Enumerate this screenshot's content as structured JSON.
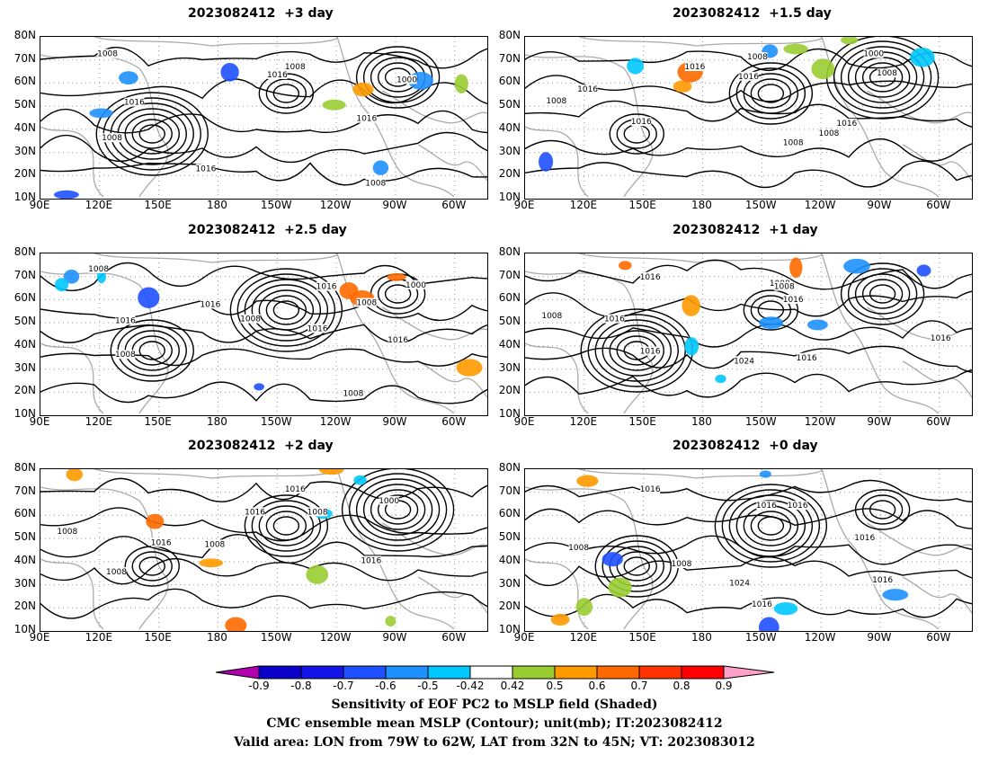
{
  "panels": [
    {
      "title": "2023082412  +3 day"
    },
    {
      "title": "2023082412  +1.5 day"
    },
    {
      "title": "2023082412  +2.5 day"
    },
    {
      "title": "2023082412  +1 day"
    },
    {
      "title": "2023082412  +2 day"
    },
    {
      "title": "2023082412  +0 day"
    }
  ],
  "axes": {
    "lat_labels": [
      "80N",
      "70N",
      "60N",
      "50N",
      "40N",
      "30N",
      "20N",
      "10N"
    ],
    "lon_labels": [
      "90E",
      "120E",
      "150E",
      "180",
      "150W",
      "120W",
      "90W",
      "60W"
    ]
  },
  "contour_labels": {
    "p0": [
      "1008",
      "1008",
      "1016",
      "1000",
      "1016",
      "1016",
      "1008",
      "1016",
      "1008"
    ],
    "p1": [
      "1008",
      "1016",
      "1008",
      "1016",
      "1000",
      "1008",
      "1016",
      "1016",
      "1008",
      "1024",
      "1016",
      "1008"
    ],
    "p2": [
      "1008",
      "1016",
      "1016",
      "1008",
      "1008",
      "1000",
      "1016",
      "1008",
      "1016",
      "1016",
      "1008"
    ],
    "p3": [
      "1016",
      "1008",
      "1016",
      "1008",
      "1008",
      "1016",
      "1016",
      "1024",
      "1016",
      "1016"
    ],
    "p4": [
      "1016",
      "1016",
      "1000",
      "1008",
      "1008",
      "1016",
      "1008",
      "1016",
      "1008"
    ],
    "p5": [
      "1016",
      "1016",
      "1008",
      "1016",
      "1008",
      "1024",
      "1016",
      "1016",
      "1016"
    ]
  },
  "colorbar": {
    "ticks": [
      "-0.9",
      "-0.8",
      "-0.7",
      "-0.6",
      "-0.5",
      "-0.42",
      "0.42",
      "0.5",
      "0.6",
      "0.7",
      "0.8",
      "0.9"
    ],
    "colors": [
      "#b000b0",
      "#0a00c8",
      "#1414e6",
      "#1e50ff",
      "#1e90ff",
      "#00c8ff",
      "#ffffff",
      "#9acd32",
      "#ff9900",
      "#ff6a00",
      "#ff3300",
      "#ff0000",
      "#ffa0c8"
    ]
  },
  "caption": {
    "line1": "Sensitivity of EOF PC2 to MSLP field (Shaded)",
    "line2": "CMC ensemble mean MSLP (Contour); unit(mb); IT:2023082412",
    "line3": "Valid area: LON from 79W to 62W, LAT from 32N to 45N; VT: 2023083012"
  }
}
